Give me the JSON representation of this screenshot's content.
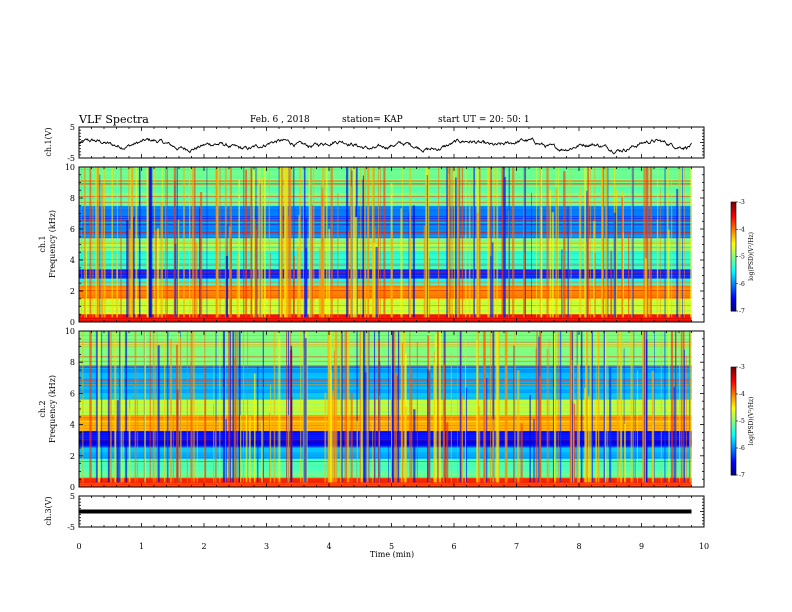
{
  "header": {
    "title": "VLF Spectra",
    "date": "Feb. 6 , 2018",
    "station": "station= KAP",
    "start": "start  UT  =   20: 50: 1"
  },
  "chart_data": [
    {
      "type": "line",
      "panel": "ch1-waveform",
      "ylabel": "ch.1(V)",
      "ylim": [
        -5,
        5
      ],
      "yticks": [
        "5",
        "-5"
      ],
      "xlim": [
        0,
        10
      ],
      "x_end": 9.8,
      "baseline": -0.8,
      "amplitude": 1.8
    },
    {
      "type": "heatmap",
      "panel": "ch1-spectrogram",
      "ylabel": "ch.1",
      "ylabel2": "Frequency (kHz)",
      "ylim": [
        0,
        10
      ],
      "yticks": [
        "0",
        "2",
        "4",
        "6",
        "8",
        "10"
      ],
      "xlim": [
        0,
        10
      ],
      "x_end": 9.8,
      "colorbar": {
        "label": "log(PSD)(V²/Hz)",
        "ticks": [
          "-3",
          "-4",
          "-5",
          "-6",
          "-7"
        ],
        "range": [
          -7,
          -3
        ]
      },
      "bands": [
        {
          "y0": 0.0,
          "y1": 0.5,
          "level": 0.85
        },
        {
          "y0": 0.5,
          "y1": 1.5,
          "level": 0.58
        },
        {
          "y0": 1.5,
          "y1": 2.4,
          "level": 0.74
        },
        {
          "y0": 2.4,
          "y1": 2.8,
          "level": 0.4
        },
        {
          "y0": 2.8,
          "y1": 3.4,
          "level": 0.15
        },
        {
          "y0": 3.4,
          "y1": 4.6,
          "level": 0.42
        },
        {
          "y0": 4.6,
          "y1": 5.4,
          "level": 0.52
        },
        {
          "y0": 5.4,
          "y1": 7.5,
          "level": 0.25
        },
        {
          "y0": 7.5,
          "y1": 10.0,
          "level": 0.48
        }
      ]
    },
    {
      "type": "heatmap",
      "panel": "ch2-spectrogram",
      "ylabel": "ch.2",
      "ylabel2": "Frequency (kHz)",
      "ylim": [
        0,
        10
      ],
      "yticks": [
        "0",
        "2",
        "4",
        "6",
        "8",
        "10"
      ],
      "xlim": [
        0,
        10
      ],
      "x_end": 9.8,
      "colorbar": {
        "label": "log(PSD)(V²/Hz)",
        "ticks": [
          "-3",
          "-4",
          "-5",
          "-6",
          "-7"
        ],
        "range": [
          -7,
          -3
        ]
      },
      "bands": [
        {
          "y0": 0.0,
          "y1": 0.6,
          "level": 0.82
        },
        {
          "y0": 0.6,
          "y1": 1.8,
          "level": 0.45
        },
        {
          "y0": 1.8,
          "y1": 2.6,
          "level": 0.3
        },
        {
          "y0": 2.6,
          "y1": 3.6,
          "level": 0.12
        },
        {
          "y0": 3.6,
          "y1": 4.6,
          "level": 0.7
        },
        {
          "y0": 4.6,
          "y1": 5.6,
          "level": 0.55
        },
        {
          "y0": 5.6,
          "y1": 7.8,
          "level": 0.3
        },
        {
          "y0": 7.8,
          "y1": 10.0,
          "level": 0.5
        }
      ]
    },
    {
      "type": "line",
      "panel": "ch3-waveform",
      "ylabel": "ch.3(V)",
      "ylim": [
        -5,
        5
      ],
      "yticks": [
        "5",
        "-5"
      ],
      "xlim": [
        0,
        10
      ],
      "x_end": 9.8,
      "value": 0
    }
  ],
  "xaxis": {
    "label": "Time  (min)",
    "ticks": [
      "0",
      "1",
      "2",
      "3",
      "4",
      "5",
      "6",
      "7",
      "8",
      "9",
      "10"
    ]
  }
}
